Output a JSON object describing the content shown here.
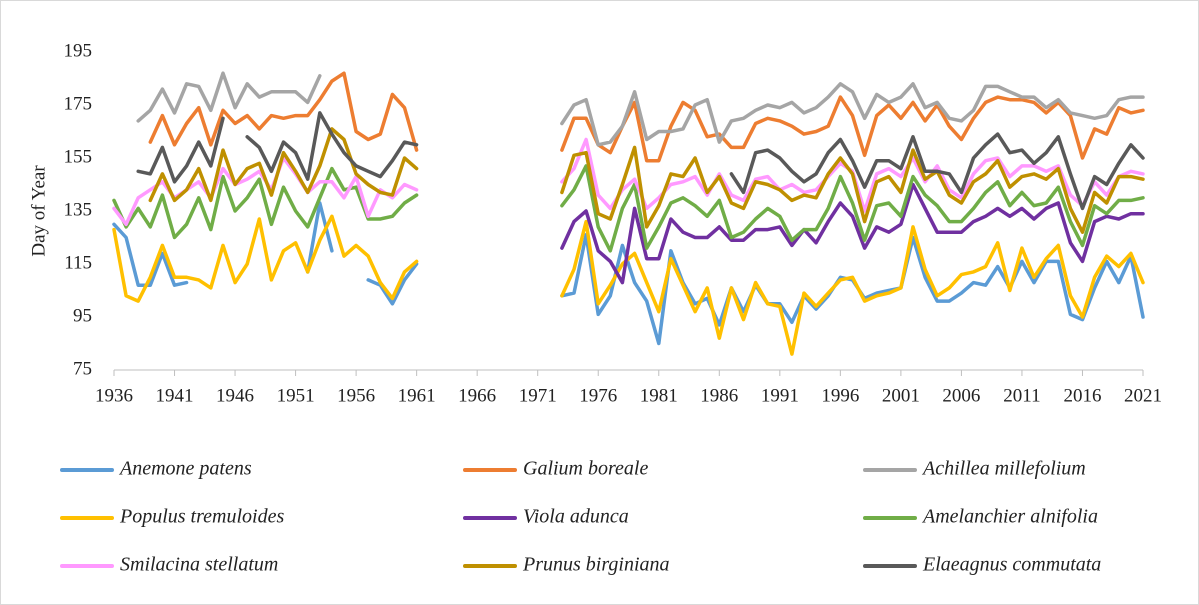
{
  "chart_data": {
    "type": "line",
    "y_label": "Day of Year",
    "x": [
      1936,
      1937,
      1938,
      1939,
      1940,
      1941,
      1942,
      1943,
      1944,
      1945,
      1946,
      1947,
      1948,
      1949,
      1950,
      1951,
      1952,
      1953,
      1954,
      1955,
      1956,
      1957,
      1958,
      1959,
      1960,
      1961,
      1962,
      1963,
      1964,
      1965,
      1966,
      1967,
      1968,
      1969,
      1970,
      1971,
      1972,
      1973,
      1974,
      1975,
      1976,
      1977,
      1978,
      1979,
      1980,
      1981,
      1982,
      1983,
      1984,
      1985,
      1986,
      1987,
      1988,
      1989,
      1990,
      1991,
      1992,
      1993,
      1994,
      1995,
      1996,
      1997,
      1998,
      1999,
      2000,
      2001,
      2002,
      2003,
      2004,
      2005,
      2006,
      2007,
      2008,
      2009,
      2010,
      2011,
      2012,
      2013,
      2014,
      2015,
      2016,
      2017,
      2018,
      2019,
      2020,
      2021
    ],
    "xlim": [
      1936,
      2021
    ],
    "xticks": [
      1936,
      1941,
      1946,
      1951,
      1956,
      1961,
      1966,
      1971,
      1976,
      1981,
      1986,
      1991,
      1996,
      2001,
      2006,
      2011,
      2016,
      2021
    ],
    "ylim": [
      75,
      195
    ],
    "yticks": [
      75,
      95,
      115,
      135,
      155,
      175,
      195
    ],
    "grid": false,
    "series": [
      {
        "name": "Anemone patens",
        "color": "#5b9bd5",
        "values": [
          130,
          125,
          107,
          107,
          119,
          107,
          108,
          null,
          null,
          null,
          null,
          null,
          null,
          null,
          null,
          null,
          112,
          138,
          120,
          null,
          null,
          109,
          107,
          100,
          109,
          115,
          null,
          null,
          null,
          null,
          null,
          null,
          null,
          null,
          null,
          null,
          null,
          103,
          104,
          126,
          96,
          103,
          122,
          108,
          101,
          85,
          120,
          108,
          100,
          102,
          92,
          106,
          97,
          107,
          100,
          100,
          93,
          103,
          98,
          103,
          110,
          109,
          102,
          104,
          105,
          106,
          125,
          110,
          101,
          101,
          104,
          108,
          107,
          114,
          106,
          116,
          108,
          116,
          116,
          96,
          94,
          106,
          116,
          108,
          118,
          95
        ]
      },
      {
        "name": "Galium boreale",
        "color": "#ed7d31",
        "values": [
          null,
          null,
          null,
          161,
          171,
          160,
          168,
          174,
          160,
          173,
          168,
          171,
          166,
          171,
          170,
          171,
          171,
          177,
          184,
          187,
          165,
          162,
          164,
          179,
          174,
          158,
          null,
          null,
          null,
          null,
          null,
          null,
          null,
          null,
          null,
          null,
          null,
          158,
          170,
          170,
          160,
          157,
          167,
          176,
          154,
          154,
          167,
          176,
          173,
          163,
          164,
          159,
          159,
          168,
          170,
          169,
          167,
          164,
          165,
          167,
          178,
          171,
          156,
          171,
          175,
          170,
          176,
          169,
          175,
          167,
          162,
          170,
          176,
          178,
          177,
          177,
          176,
          172,
          176,
          171,
          155,
          166,
          164,
          174,
          172,
          173
        ]
      },
      {
        "name": "Achillea millefolium",
        "color": "#a5a5a5",
        "values": [
          null,
          null,
          169,
          173,
          181,
          172,
          183,
          182,
          173,
          187,
          174,
          183,
          178,
          180,
          180,
          180,
          176,
          186,
          null,
          null,
          null,
          null,
          null,
          null,
          null,
          null,
          null,
          null,
          null,
          null,
          null,
          null,
          null,
          null,
          null,
          null,
          null,
          168,
          175,
          177,
          160,
          161,
          167,
          180,
          162,
          165,
          165,
          166,
          175,
          177,
          161,
          169,
          170,
          173,
          175,
          174,
          176,
          172,
          174,
          178,
          183,
          180,
          170,
          179,
          176,
          178,
          183,
          174,
          176,
          170,
          169,
          173,
          182,
          182,
          180,
          178,
          178,
          174,
          177,
          172,
          171,
          170,
          171,
          177,
          178,
          178
        ]
      },
      {
        "name": "Populus tremuloides",
        "color": "#ffc000",
        "values": [
          128,
          103,
          101,
          110,
          122,
          110,
          110,
          109,
          106,
          122,
          108,
          115,
          132,
          109,
          120,
          123,
          112,
          124,
          133,
          118,
          122,
          118,
          108,
          102,
          112,
          116,
          null,
          null,
          null,
          null,
          null,
          null,
          null,
          null,
          null,
          null,
          null,
          103,
          113,
          131,
          100,
          107,
          115,
          119,
          108,
          97,
          117,
          107,
          97,
          106,
          87,
          106,
          94,
          108,
          100,
          99,
          81,
          104,
          99,
          104,
          109,
          110,
          101,
          103,
          104,
          106,
          129,
          113,
          103,
          106,
          111,
          112,
          114,
          123,
          105,
          121,
          110,
          117,
          122,
          103,
          95,
          110,
          118,
          114,
          119,
          108
        ]
      },
      {
        "name": "Viola adunca",
        "color": "#7030a0",
        "values": [
          null,
          null,
          null,
          null,
          null,
          null,
          null,
          null,
          null,
          null,
          null,
          null,
          null,
          null,
          null,
          null,
          null,
          null,
          null,
          null,
          null,
          null,
          null,
          null,
          null,
          null,
          null,
          null,
          null,
          null,
          null,
          null,
          null,
          null,
          null,
          null,
          null,
          121,
          131,
          135,
          120,
          116,
          108,
          136,
          117,
          117,
          132,
          127,
          125,
          125,
          129,
          124,
          124,
          128,
          128,
          129,
          122,
          128,
          123,
          131,
          138,
          133,
          121,
          129,
          127,
          130,
          145,
          136,
          127,
          127,
          127,
          131,
          133,
          136,
          133,
          136,
          132,
          136,
          138,
          123,
          116,
          131,
          133,
          132,
          134,
          134
        ]
      },
      {
        "name": "Amelanchier alnifolia",
        "color": "#70ad47",
        "values": [
          139,
          129,
          136,
          129,
          141,
          125,
          130,
          140,
          128,
          148,
          135,
          140,
          147,
          130,
          144,
          135,
          129,
          140,
          151,
          143,
          144,
          132,
          132,
          133,
          138,
          141,
          null,
          null,
          null,
          null,
          null,
          null,
          null,
          null,
          null,
          null,
          null,
          137,
          143,
          152,
          129,
          120,
          136,
          145,
          121,
          129,
          138,
          140,
          137,
          133,
          139,
          125,
          127,
          132,
          136,
          133,
          124,
          128,
          128,
          136,
          148,
          138,
          124,
          137,
          138,
          133,
          148,
          141,
          137,
          131,
          131,
          136,
          142,
          146,
          137,
          142,
          137,
          138,
          144,
          131,
          122,
          137,
          134,
          139,
          139,
          140
        ]
      },
      {
        "name": "Smilacina stellatum",
        "color": "#ff99ff",
        "values": [
          136,
          130,
          140,
          143,
          146,
          140,
          143,
          146,
          140,
          151,
          145,
          147,
          150,
          143,
          155,
          149,
          142,
          146,
          146,
          140,
          148,
          133,
          143,
          140,
          145,
          143,
          null,
          null,
          null,
          null,
          null,
          null,
          null,
          null,
          null,
          null,
          null,
          146,
          151,
          162,
          141,
          136,
          143,
          147,
          136,
          140,
          145,
          146,
          148,
          141,
          149,
          141,
          139,
          147,
          148,
          143,
          145,
          142,
          143,
          148,
          153,
          150,
          135,
          149,
          151,
          148,
          155,
          146,
          152,
          143,
          140,
          149,
          154,
          155,
          148,
          152,
          152,
          150,
          152,
          141,
          137,
          146,
          141,
          148,
          150,
          149
        ]
      },
      {
        "name": "Prunus birginiana",
        "color": "#bf9000",
        "values": [
          null,
          null,
          null,
          139,
          149,
          139,
          143,
          151,
          139,
          158,
          145,
          151,
          153,
          141,
          157,
          150,
          142,
          152,
          166,
          162,
          149,
          145,
          142,
          141,
          155,
          151,
          null,
          null,
          null,
          null,
          null,
          null,
          null,
          null,
          null,
          null,
          null,
          142,
          156,
          157,
          134,
          132,
          145,
          159,
          129,
          137,
          149,
          148,
          155,
          142,
          148,
          138,
          136,
          146,
          145,
          143,
          139,
          141,
          140,
          149,
          155,
          149,
          131,
          146,
          148,
          142,
          158,
          147,
          150,
          141,
          138,
          146,
          149,
          154,
          144,
          148,
          149,
          147,
          151,
          136,
          127,
          142,
          138,
          148,
          148,
          147
        ]
      },
      {
        "name": "Elaeagnus commutata",
        "color": "#595959",
        "values": [
          null,
          null,
          150,
          149,
          159,
          146,
          152,
          161,
          152,
          170,
          null,
          163,
          159,
          150,
          161,
          157,
          147,
          172,
          164,
          157,
          152,
          150,
          148,
          154,
          161,
          160,
          null,
          null,
          null,
          null,
          null,
          null,
          null,
          null,
          null,
          null,
          null,
          null,
          null,
          null,
          null,
          null,
          null,
          null,
          null,
          null,
          null,
          null,
          null,
          null,
          null,
          149,
          142,
          157,
          158,
          155,
          150,
          146,
          149,
          157,
          162,
          154,
          144,
          154,
          154,
          151,
          163,
          150,
          150,
          149,
          142,
          155,
          160,
          164,
          157,
          158,
          153,
          157,
          163,
          149,
          136,
          148,
          145,
          153,
          160,
          155
        ]
      }
    ]
  }
}
